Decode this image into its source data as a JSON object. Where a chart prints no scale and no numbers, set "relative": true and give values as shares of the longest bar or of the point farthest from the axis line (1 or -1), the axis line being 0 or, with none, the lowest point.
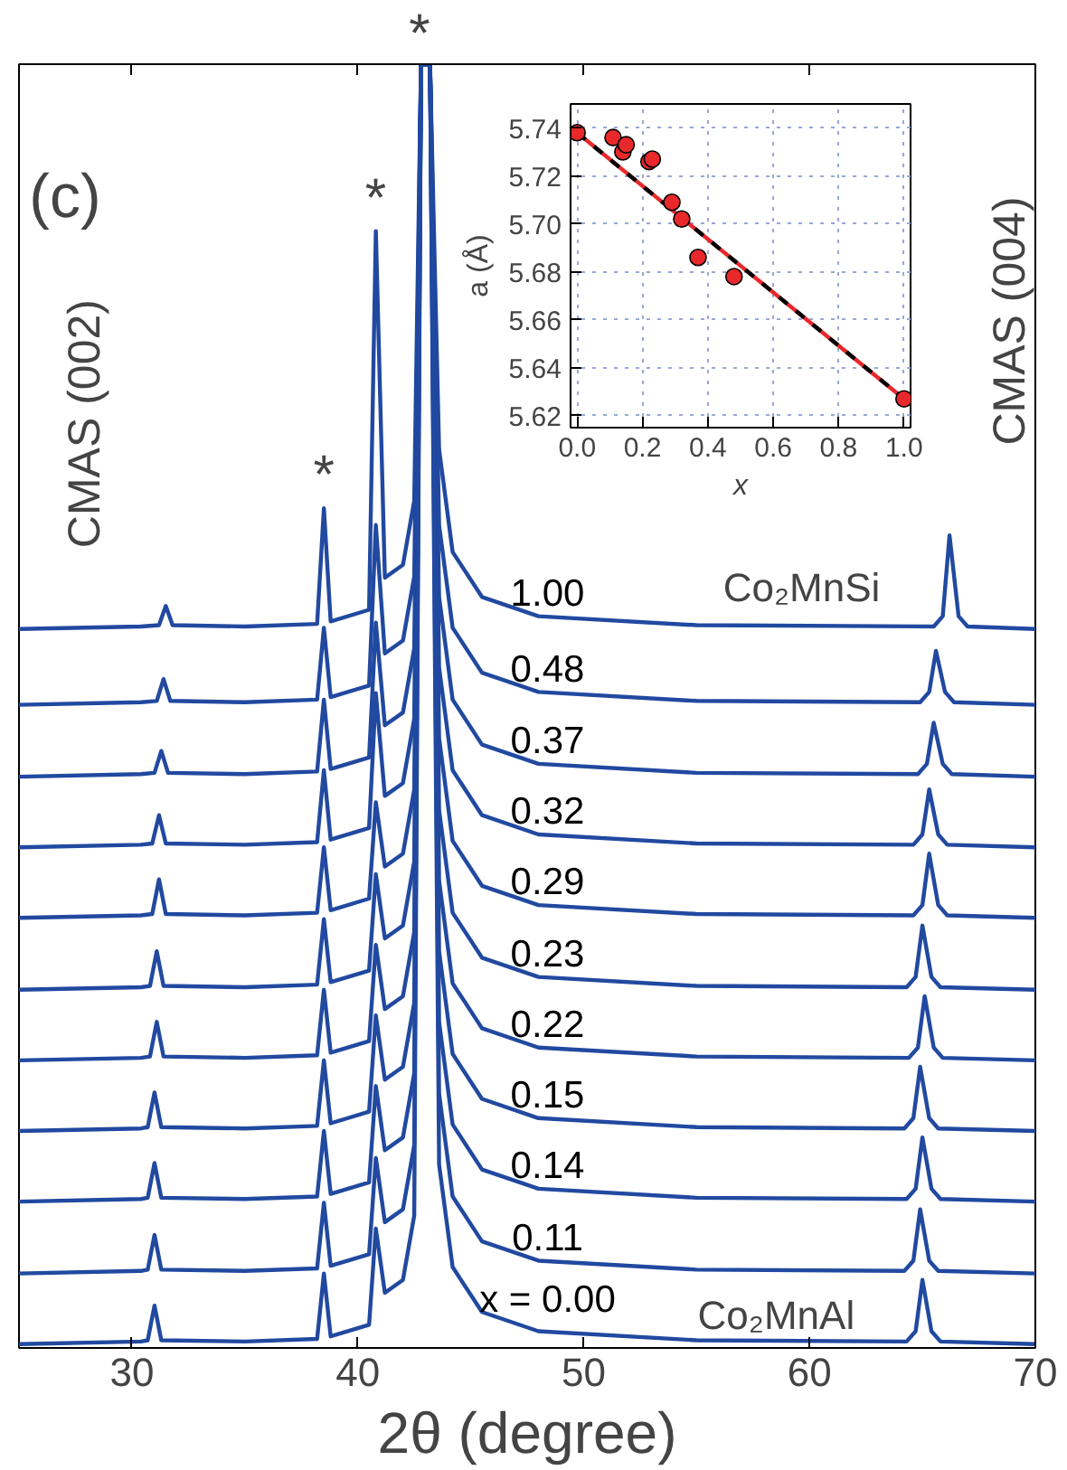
{
  "chart_data": [
    {
      "type": "line",
      "relative": true,
      "xlabel": "2θ (degree)",
      "xlim": [
        25,
        70
      ],
      "xticks": [
        30,
        40,
        50,
        60,
        70
      ],
      "tick_labels": "x",
      "grid": false,
      "annotations": [
        "(c)",
        "*",
        "*",
        "*",
        "CMAS (002)",
        "CMAS (004)",
        "Co₂MnSi",
        "Co₂MnAl"
      ],
      "series": [
        {
          "name": "1.00",
          "color": "#2149a0",
          "x": [
            25,
            30.4,
            31.2,
            31.5,
            31.8,
            35,
            38.2,
            38.5,
            38.8,
            40.5,
            40.8,
            41.2,
            42.0,
            42.5,
            42.8,
            43.2,
            43.6,
            44.2,
            45.5,
            48,
            55,
            65.5,
            65.9,
            66.2,
            66.6,
            67.0,
            70
          ],
          "values": [
            0.56,
            0.562,
            0.563,
            0.578,
            0.563,
            0.562,
            0.564,
            0.654,
            0.566,
            0.575,
            0.87,
            0.6,
            0.61,
            0.66,
            1,
            1,
            0.7,
            0.62,
            0.585,
            0.57,
            0.563,
            0.562,
            0.57,
            0.633,
            0.57,
            0.562,
            0.56
          ]
        },
        {
          "name": "0.48",
          "color": "#2149a0",
          "x": [
            25,
            30.4,
            31.1,
            31.4,
            31.7,
            35,
            38.2,
            38.5,
            38.8,
            40.5,
            40.8,
            41.2,
            42.0,
            42.5,
            42.8,
            43.2,
            43.6,
            44.2,
            45.5,
            48,
            55,
            64.9,
            65.3,
            65.6,
            66.0,
            66.4,
            70
          ],
          "values": [
            0.501,
            0.503,
            0.504,
            0.521,
            0.504,
            0.503,
            0.505,
            0.561,
            0.507,
            0.516,
            0.641,
            0.541,
            0.551,
            0.601,
            1,
            1,
            0.641,
            0.561,
            0.526,
            0.511,
            0.504,
            0.503,
            0.511,
            0.543,
            0.511,
            0.503,
            0.501
          ]
        },
        {
          "name": "0.37",
          "color": "#2149a0",
          "x": [
            25,
            30.4,
            31.0,
            31.3,
            31.6,
            35,
            38.2,
            38.5,
            38.8,
            40.5,
            40.8,
            41.2,
            42.0,
            42.5,
            42.8,
            43.2,
            43.6,
            44.2,
            45.5,
            48,
            55,
            64.8,
            65.2,
            65.5,
            65.9,
            66.3,
            70
          ],
          "values": [
            0.445,
            0.447,
            0.448,
            0.465,
            0.448,
            0.447,
            0.449,
            0.505,
            0.451,
            0.46,
            0.565,
            0.485,
            0.495,
            0.545,
            1,
            1,
            0.585,
            0.505,
            0.47,
            0.455,
            0.448,
            0.447,
            0.455,
            0.487,
            0.455,
            0.447,
            0.445
          ]
        },
        {
          "name": "0.32",
          "color": "#2149a0",
          "x": [
            25,
            30.4,
            30.9,
            31.2,
            31.5,
            35,
            38.2,
            38.5,
            38.8,
            40.5,
            40.8,
            41.2,
            42.0,
            42.5,
            42.8,
            43.2,
            43.6,
            44.2,
            45.5,
            48,
            55,
            64.6,
            65.0,
            65.3,
            65.7,
            66.1,
            70
          ],
          "values": [
            0.39,
            0.392,
            0.393,
            0.415,
            0.393,
            0.392,
            0.394,
            0.45,
            0.396,
            0.405,
            0.51,
            0.43,
            0.44,
            0.49,
            1,
            1,
            0.53,
            0.45,
            0.415,
            0.4,
            0.393,
            0.392,
            0.4,
            0.435,
            0.4,
            0.392,
            0.39
          ]
        },
        {
          "name": "0.29",
          "color": "#2149a0",
          "x": [
            25,
            30.4,
            30.9,
            31.2,
            31.5,
            35,
            38.2,
            38.5,
            38.8,
            40.5,
            40.8,
            41.2,
            42.0,
            42.5,
            42.8,
            43.2,
            43.6,
            44.2,
            45.5,
            48,
            55,
            64.6,
            65.0,
            65.3,
            65.7,
            66.1,
            70
          ],
          "values": [
            0.335,
            0.337,
            0.338,
            0.365,
            0.338,
            0.337,
            0.339,
            0.39,
            0.341,
            0.35,
            0.425,
            0.375,
            0.385,
            0.435,
            1,
            1,
            0.475,
            0.395,
            0.36,
            0.345,
            0.338,
            0.337,
            0.345,
            0.385,
            0.345,
            0.337,
            0.335
          ]
        },
        {
          "name": "0.23",
          "color": "#2149a0",
          "x": [
            25,
            30.4,
            30.8,
            31.1,
            31.4,
            35,
            38.2,
            38.5,
            38.8,
            40.5,
            40.8,
            41.2,
            42.0,
            42.5,
            42.8,
            43.2,
            43.6,
            44.2,
            45.5,
            48,
            55,
            64.3,
            64.7,
            65.0,
            65.4,
            65.8,
            70
          ],
          "values": [
            0.279,
            0.281,
            0.282,
            0.309,
            0.282,
            0.281,
            0.283,
            0.334,
            0.285,
            0.294,
            0.369,
            0.319,
            0.329,
            0.379,
            1,
            1,
            0.419,
            0.339,
            0.304,
            0.289,
            0.282,
            0.281,
            0.289,
            0.329,
            0.289,
            0.281,
            0.279
          ]
        },
        {
          "name": "0.22",
          "color": "#2149a0",
          "x": [
            25,
            30.4,
            30.8,
            31.1,
            31.4,
            35,
            38.2,
            38.5,
            38.8,
            40.5,
            40.8,
            41.2,
            42.0,
            42.5,
            42.8,
            43.2,
            43.6,
            44.2,
            45.5,
            48,
            55,
            64.4,
            64.8,
            65.1,
            65.5,
            65.9,
            70
          ],
          "values": [
            0.224,
            0.226,
            0.227,
            0.254,
            0.227,
            0.226,
            0.228,
            0.279,
            0.23,
            0.239,
            0.314,
            0.264,
            0.274,
            0.324,
            1,
            1,
            0.364,
            0.284,
            0.249,
            0.234,
            0.227,
            0.226,
            0.234,
            0.274,
            0.234,
            0.226,
            0.224
          ]
        },
        {
          "name": "0.15",
          "color": "#2149a0",
          "x": [
            25,
            30.4,
            30.7,
            31.0,
            31.3,
            35,
            38.2,
            38.5,
            38.8,
            40.5,
            40.8,
            41.2,
            42.0,
            42.5,
            42.8,
            43.2,
            43.6,
            44.2,
            45.5,
            48,
            55,
            64.2,
            64.6,
            64.9,
            65.3,
            65.7,
            70
          ],
          "values": [
            0.169,
            0.171,
            0.172,
            0.199,
            0.172,
            0.171,
            0.173,
            0.224,
            0.175,
            0.184,
            0.259,
            0.209,
            0.219,
            0.269,
            1,
            1,
            0.309,
            0.229,
            0.194,
            0.179,
            0.172,
            0.171,
            0.179,
            0.219,
            0.179,
            0.171,
            0.169
          ]
        },
        {
          "name": "0.14",
          "color": "#2149a0",
          "x": [
            25,
            30.4,
            30.7,
            31.0,
            31.3,
            35,
            38.2,
            38.5,
            38.8,
            40.5,
            40.8,
            41.2,
            42.0,
            42.5,
            42.8,
            43.2,
            43.6,
            44.2,
            45.5,
            48,
            55,
            64.3,
            64.7,
            65.0,
            65.4,
            65.8,
            70
          ],
          "values": [
            0.114,
            0.116,
            0.117,
            0.144,
            0.117,
            0.116,
            0.118,
            0.169,
            0.12,
            0.129,
            0.204,
            0.154,
            0.164,
            0.214,
            1,
            1,
            0.254,
            0.174,
            0.139,
            0.124,
            0.117,
            0.116,
            0.124,
            0.164,
            0.124,
            0.116,
            0.114
          ]
        },
        {
          "name": "0.11",
          "color": "#2149a0",
          "x": [
            25,
            30.4,
            30.7,
            31.0,
            31.3,
            35,
            38.2,
            38.5,
            38.8,
            40.5,
            40.8,
            41.2,
            42.0,
            42.5,
            42.8,
            43.2,
            43.6,
            44.2,
            45.5,
            48,
            55,
            64.2,
            64.6,
            64.9,
            65.3,
            65.7,
            70
          ],
          "values": [
            0.058,
            0.06,
            0.061,
            0.088,
            0.061,
            0.06,
            0.062,
            0.113,
            0.064,
            0.073,
            0.148,
            0.098,
            0.108,
            0.158,
            1,
            1,
            0.198,
            0.118,
            0.083,
            0.068,
            0.061,
            0.06,
            0.068,
            0.108,
            0.068,
            0.06,
            0.058
          ]
        },
        {
          "name": "x = 0.00",
          "color": "#2149a0",
          "x": [
            25,
            30.4,
            30.7,
            31.0,
            31.3,
            35,
            38.2,
            38.5,
            38.8,
            40.5,
            40.8,
            41.2,
            42.0,
            42.5,
            42.8,
            43.2,
            43.6,
            44.2,
            45.5,
            48,
            55,
            64.3,
            64.7,
            65.0,
            65.4,
            65.8,
            70
          ],
          "values": [
            0.003,
            0.005,
            0.006,
            0.033,
            0.006,
            0.005,
            0.007,
            0.058,
            0.009,
            0.018,
            0.093,
            0.043,
            0.053,
            0.103,
            1,
            1,
            0.143,
            0.063,
            0.028,
            0.013,
            0.006,
            0.005,
            0.013,
            0.053,
            0.013,
            0.005,
            0.003
          ]
        }
      ]
    },
    {
      "type": "scatter",
      "xlabel": "x",
      "ylabel": "a (Å)",
      "xlim": [
        -0.02,
        1.02
      ],
      "xticks": [
        {
          "value": 0,
          "label": "0.0"
        },
        {
          "value": 0.2,
          "label": "0.2"
        },
        {
          "value": 0.4,
          "label": "0.4"
        },
        {
          "value": 0.6,
          "label": "0.6"
        },
        {
          "value": 0.8,
          "label": "0.8"
        },
        {
          "value": 1,
          "label": "1.0"
        }
      ],
      "ylim": [
        5.615,
        5.75
      ],
      "yticks": [
        5.62,
        5.64,
        5.66,
        5.68,
        {
          "value": 5.7,
          "label": "5.70"
        },
        5.72,
        5.74
      ],
      "grid": true,
      "series": [
        {
          "type": "line",
          "color": "#e8282b",
          "x": [
            0,
            1
          ],
          "values": [
            5.738,
            5.627
          ],
          "line_style": "solid"
        },
        {
          "type": "line",
          "color": "#000000",
          "x": [
            0,
            1
          ],
          "values": [
            5.738,
            5.627
          ],
          "line_style": "dashed"
        },
        {
          "color": "#e8282b",
          "marker": "circle",
          "x": [
            0,
            0.11,
            0.14,
            0.15,
            0.22,
            0.23,
            0.29,
            0.32,
            0.37,
            0.48,
            1.0
          ],
          "values": [
            5.738,
            5.736,
            5.73,
            5.733,
            5.726,
            5.727,
            5.709,
            5.702,
            5.686,
            5.678,
            5.627
          ]
        }
      ]
    }
  ]
}
